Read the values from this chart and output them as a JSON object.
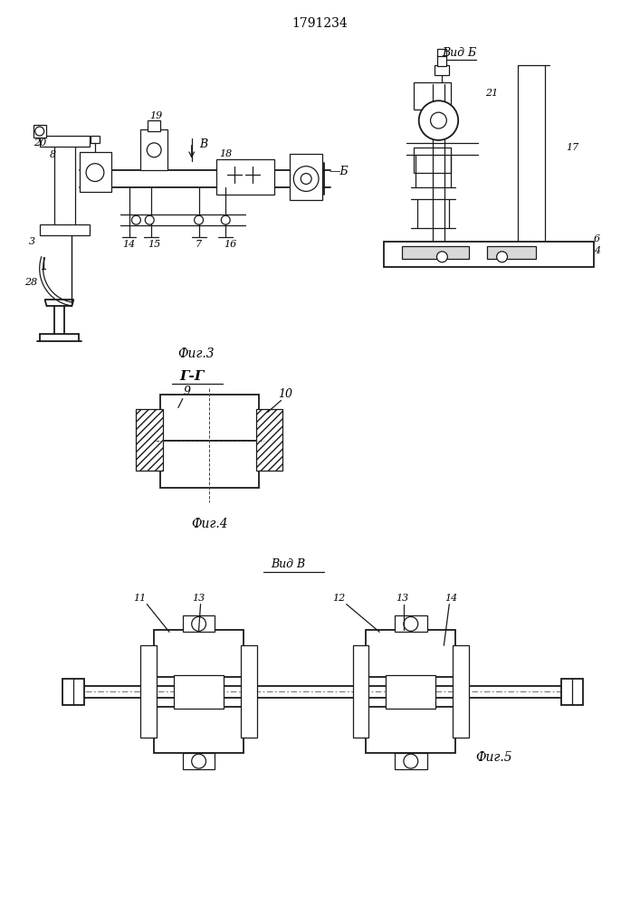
{
  "title": "1791234",
  "bg": "#ffffff",
  "lc": "#1a1a1a",
  "fig3_label": "Фиг.3",
  "fig4_label": "Фиг.4",
  "fig5_label": "Фиг.5",
  "vid_b_label": "Вид Б",
  "vid_v_label": "Вид В",
  "g_g_label": "Г-Г"
}
